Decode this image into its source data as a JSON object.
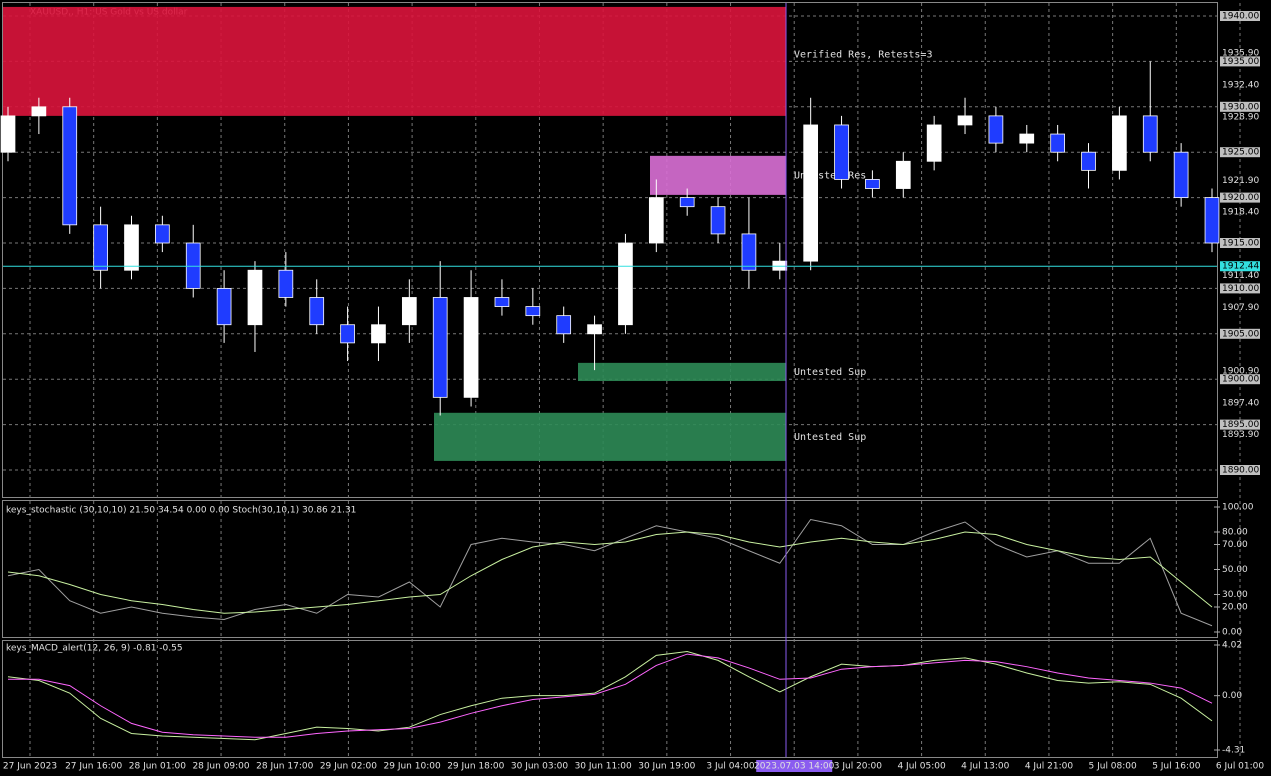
{
  "chart_data": [
    {
      "type": "candlestick",
      "title": "XAUUSD,, H1: US Gold vs US dollar",
      "open": [
        1925,
        1929,
        1930,
        1917,
        1912,
        1917,
        1915,
        1910,
        1906,
        1912,
        1909,
        1906,
        1904,
        1906,
        1909,
        1898,
        1909,
        1908,
        1907,
        1905,
        1906,
        1915,
        1920,
        1919,
        1916,
        1912,
        1913,
        1928,
        1922,
        1921,
        1924,
        1928,
        1929,
        1926,
        1927,
        1925,
        1923,
        1929,
        1925,
        1920
      ],
      "high": [
        1930,
        1931,
        1931,
        1919,
        1918,
        1918,
        1917,
        1912,
        1913,
        1914,
        1911,
        1908,
        1908,
        1911,
        1913,
        1912,
        1911,
        1910,
        1908,
        1907,
        1916,
        1922,
        1921,
        1920,
        1920,
        1915,
        1931,
        1929,
        1923,
        1925,
        1929,
        1931,
        1930,
        1928,
        1928,
        1926,
        1930,
        1935,
        1926,
        1921
      ],
      "low": [
        1924,
        1927,
        1916,
        1910,
        1911,
        1914,
        1909,
        1904,
        1903,
        1908,
        1905,
        1902,
        1902,
        1904,
        1896,
        1897,
        1907,
        1906,
        1904,
        1901,
        1905,
        1914,
        1918,
        1915,
        1910,
        1911,
        1912,
        1921,
        1920,
        1920,
        1923,
        1927,
        1925,
        1925,
        1924,
        1921,
        1922,
        1924,
        1919,
        1914
      ],
      "close": [
        1929,
        1930,
        1917,
        1912,
        1917,
        1915,
        1910,
        1906,
        1912,
        1909,
        1906,
        1904,
        1906,
        1909,
        1898,
        1909,
        1908,
        1907,
        1905,
        1906,
        1915,
        1920,
        1919,
        1916,
        1912,
        1913,
        1928,
        1922,
        1921,
        1924,
        1928,
        1929,
        1926,
        1927,
        1925,
        1923,
        1929,
        1925,
        1920,
        1915
      ],
      "up_color": "#ffffff",
      "down_color": "#1f3cff",
      "ylim": [
        1890,
        1940
      ],
      "yticks": [
        {
          "value": 1940,
          "label": "1940.00"
        },
        {
          "value": 1935.9,
          "label": "1935.90"
        },
        {
          "value": 1935,
          "label": "1935.00"
        },
        {
          "value": 1932.4,
          "label": "1932.40"
        },
        {
          "value": 1930,
          "label": "1930.00"
        },
        {
          "value": 1928.9,
          "label": "1928.90"
        },
        {
          "value": 1925,
          "label": "1925.00"
        },
        {
          "value": 1921.9,
          "label": "1921.90"
        },
        {
          "value": 1920,
          "label": "1920.00"
        },
        {
          "value": 1918.4,
          "label": "1918.40"
        },
        {
          "value": 1915,
          "label": "1915.00"
        },
        {
          "value": 1911.4,
          "label": "1911.40"
        },
        {
          "value": 1910,
          "label": "1910.00"
        },
        {
          "value": 1907.9,
          "label": "1907.90"
        },
        {
          "value": 1905,
          "label": "1905.00"
        },
        {
          "value": 1900.9,
          "label": "1900.90"
        },
        {
          "value": 1900,
          "label": "1900.00"
        },
        {
          "value": 1897.4,
          "label": "1897.40"
        },
        {
          "value": 1895,
          "label": "1895.00"
        },
        {
          "value": 1893.9,
          "label": "1893.90"
        },
        {
          "value": 1890,
          "label": "1890.00"
        }
      ],
      "current_price": {
        "value": 1912.44,
        "label": "1912.44"
      },
      "zones": [
        {
          "name": "Verified Res, Retests=3",
          "top": 1941,
          "bottom": 1929,
          "color": "#dc143c"
        },
        {
          "name": "Untested Res",
          "top": 1924.6,
          "bottom": 1920.3,
          "color": "#da70d6"
        },
        {
          "name": "Untested Sup",
          "top": 1901.8,
          "bottom": 1899.8,
          "color": "#2e8b57"
        },
        {
          "name": "Untested Sup",
          "top": 1896.3,
          "bottom": 1891,
          "color": "#2e8b57"
        }
      ]
    },
    {
      "type": "line",
      "title": "keys_stochastic (30,10,10) 21.50 34.54 0.00 0.00 Stoch(30,10,1) 30.86 21.31",
      "series": [
        {
          "color": "#a0a0a0",
          "values": [
            45,
            50,
            25,
            15,
            20,
            15,
            12,
            10,
            18,
            22,
            15,
            30,
            28,
            40,
            20,
            70,
            75,
            72,
            70,
            65,
            75,
            85,
            80,
            75,
            65,
            55,
            90,
            85,
            70,
            70,
            80,
            88,
            70,
            60,
            65,
            55,
            55,
            75,
            15,
            5
          ]
        },
        {
          "color": "#c8f0a0",
          "values": [
            48,
            45,
            38,
            30,
            25,
            22,
            18,
            15,
            16,
            18,
            20,
            22,
            25,
            28,
            30,
            45,
            58,
            68,
            72,
            70,
            72,
            78,
            80,
            78,
            72,
            68,
            72,
            75,
            72,
            70,
            74,
            80,
            78,
            70,
            65,
            60,
            58,
            60,
            40,
            20
          ]
        }
      ],
      "ylim": [
        0,
        100
      ],
      "yticks": [
        {
          "value": 100,
          "label": "100.00"
        },
        {
          "value": 80,
          "label": "80.00"
        },
        {
          "value": 70,
          "label": "70.00"
        },
        {
          "value": 50,
          "label": "50.00"
        },
        {
          "value": 30,
          "label": "30.00"
        },
        {
          "value": 20,
          "label": "20.00"
        },
        {
          "value": 0,
          "label": "0.00"
        }
      ]
    },
    {
      "type": "line",
      "title": "keys_MACD_alert(12, 26, 9) -0.81 -0.55",
      "series": [
        {
          "color": "#c8f0a0",
          "values": [
            1.5,
            1.2,
            0.2,
            -1.8,
            -3,
            -3.2,
            -3.3,
            -3.4,
            -3.5,
            -3.0,
            -2.5,
            -2.6,
            -2.8,
            -2.5,
            -1.5,
            -0.8,
            -0.2,
            0,
            0,
            0.2,
            1.5,
            3.2,
            3.5,
            2.8,
            1.5,
            0.3,
            1.5,
            2.5,
            2.3,
            2.4,
            2.8,
            3.0,
            2.5,
            1.8,
            1.2,
            1.0,
            1.1,
            0.9,
            -0.2,
            -2
          ]
        },
        {
          "color": "#ff66ff",
          "values": [
            1.3,
            1.3,
            0.8,
            -0.8,
            -2.2,
            -2.9,
            -3.1,
            -3.2,
            -3.3,
            -3.3,
            -3.0,
            -2.8,
            -2.7,
            -2.6,
            -2.1,
            -1.4,
            -0.8,
            -0.3,
            -0.1,
            0.1,
            0.9,
            2.4,
            3.3,
            3.0,
            2.2,
            1.3,
            1.4,
            2.1,
            2.3,
            2.4,
            2.6,
            2.8,
            2.7,
            2.3,
            1.8,
            1.4,
            1.2,
            1.0,
            0.6,
            -0.6
          ]
        }
      ],
      "ylim": [
        -4.31,
        4.02
      ],
      "yticks": [
        {
          "value": 4.02,
          "label": "4.02"
        },
        {
          "value": 0,
          "label": "0.00"
        },
        {
          "value": -4.31,
          "label": "-4.31"
        }
      ]
    }
  ],
  "time_axis": {
    "labels": [
      "27 Jun 2023",
      "27 Jun 16:00",
      "28 Jun 01:00",
      "28 Jun 09:00",
      "28 Jun 17:00",
      "29 Jun 02:00",
      "29 Jun 10:00",
      "29 Jun 18:00",
      "30 Jun 03:00",
      "30 Jun 11:00",
      "30 Jun 19:00",
      "3 Jul 04:00",
      "2023.07.03 14:00",
      "3 Jul 20:00",
      "4 Jul 05:00",
      "4 Jul 13:00",
      "4 Jul 21:00",
      "5 Jul 08:00",
      "5 Jul 16:00",
      "6 Jul 01:00"
    ],
    "highlight": "2023.07.03 14:00"
  }
}
